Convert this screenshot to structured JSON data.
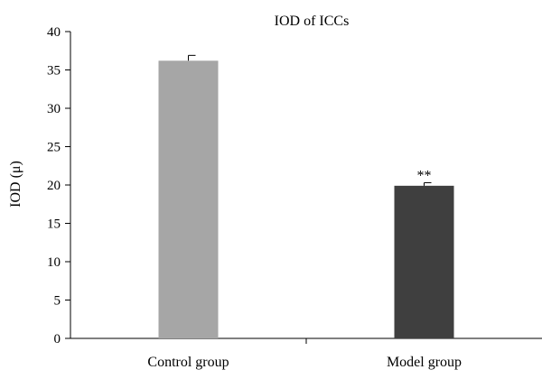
{
  "chart_data": {
    "type": "bar",
    "title": "IOD of ICCs",
    "xlabel": "",
    "ylabel": "IOD (μ)",
    "ylim": [
      0,
      40
    ],
    "yticks": [
      0,
      5,
      10,
      15,
      20,
      25,
      30,
      35,
      40
    ],
    "categories": [
      "Control group",
      "Model group"
    ],
    "values": [
      36.2,
      19.9
    ],
    "errors": [
      0.7,
      0.4
    ],
    "annotations": [
      "",
      "**"
    ],
    "colors": [
      "#a6a6a6",
      "#3f3f3f"
    ],
    "grid": false,
    "legend": "none"
  }
}
